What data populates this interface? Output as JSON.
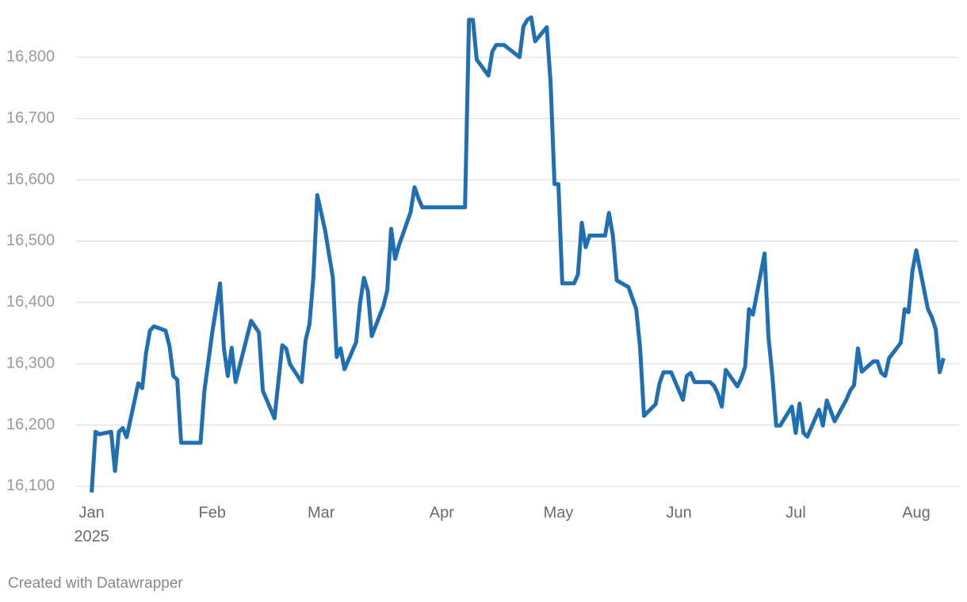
{
  "chart_data": {
    "type": "line",
    "x": [
      0,
      1,
      2,
      5,
      6,
      7,
      8,
      9,
      12,
      13,
      14,
      15,
      16,
      19,
      20,
      21,
      22,
      23,
      28,
      29,
      31,
      33,
      34,
      35,
      36,
      37,
      41,
      43,
      44,
      47,
      49,
      50,
      51,
      54,
      55,
      56,
      57,
      58,
      60,
      62,
      63,
      64,
      65,
      68,
      69,
      70,
      71,
      72,
      75,
      76,
      77,
      78,
      79,
      82,
      83,
      84,
      85,
      96,
      97,
      98,
      99,
      102,
      103,
      104,
      106,
      110,
      111,
      112,
      113,
      114,
      117,
      118,
      119,
      120,
      121,
      124,
      125,
      126,
      127,
      128,
      132,
      133,
      134,
      135,
      138,
      140,
      141,
      142,
      145,
      146,
      147,
      149,
      152,
      153,
      154,
      155,
      159,
      160,
      161,
      162,
      163,
      166,
      167,
      168,
      169,
      170,
      173,
      174,
      175,
      176,
      177,
      180,
      181,
      182,
      183,
      184,
      187,
      188,
      189,
      191,
      194,
      195,
      196,
      197,
      198,
      201,
      202,
      203,
      204,
      205,
      208,
      209,
      210,
      211,
      212,
      215,
      216,
      217,
      218,
      219
    ],
    "values": [
      16090,
      16189,
      16185,
      16189,
      16125,
      16189,
      16195,
      16180,
      16268,
      16260,
      16318,
      16354,
      16361,
      16354,
      16329,
      16280,
      16274,
      16171,
      16171,
      16256,
      16351,
      16431,
      16325,
      16280,
      16326,
      16270,
      16370,
      16351,
      16256,
      16211,
      16330,
      16325,
      16299,
      16270,
      16338,
      16364,
      16441,
      16575,
      16518,
      16441,
      16311,
      16325,
      16291,
      16335,
      16398,
      16440,
      16418,
      16345,
      16394,
      16420,
      16520,
      16471,
      16493,
      16547,
      16588,
      16570,
      16555,
      16555,
      16861,
      16861,
      16796,
      16770,
      16809,
      16820,
      16820,
      16800,
      16850,
      16861,
      16865,
      16826,
      16849,
      16757,
      16593,
      16593,
      16431,
      16431,
      16445,
      16530,
      16490,
      16509,
      16509,
      16546,
      16509,
      16436,
      16425,
      16389,
      16325,
      16215,
      16234,
      16268,
      16286,
      16286,
      16241,
      16280,
      16285,
      16270,
      16270,
      16264,
      16251,
      16230,
      16290,
      16263,
      16276,
      16295,
      16389,
      16380,
      16480,
      16344,
      16281,
      16199,
      16199,
      16230,
      16187,
      16235,
      16187,
      16181,
      16225,
      16199,
      16240,
      16206,
      16241,
      16256,
      16265,
      16325,
      16287,
      16304,
      16304,
      16285,
      16280,
      16309,
      16334,
      16389,
      16384,
      16451,
      16485,
      16389,
      16376,
      16356,
      16286,
      16309
    ],
    "color": "#1f6fb2",
    "xlim": [
      -4,
      223
    ],
    "xticks": [
      {
        "value": 0,
        "label": "Jan"
      },
      {
        "value": 31,
        "label": "Feb"
      },
      {
        "value": 59,
        "label": "Mar"
      },
      {
        "value": 90,
        "label": "Apr"
      },
      {
        "value": 120,
        "label": "May"
      },
      {
        "value": 151,
        "label": "Jun"
      },
      {
        "value": 181,
        "label": "Jul"
      },
      {
        "value": 212,
        "label": "Aug"
      }
    ],
    "x_year_label": "2025",
    "ylim": [
      16090,
      16870
    ],
    "yticks": [
      {
        "value": 16100,
        "label": "16,100"
      },
      {
        "value": 16200,
        "label": "16,200"
      },
      {
        "value": 16300,
        "label": "16,300"
      },
      {
        "value": 16400,
        "label": "16,400"
      },
      {
        "value": 16500,
        "label": "16,500"
      },
      {
        "value": 16600,
        "label": "16,600"
      },
      {
        "value": 16700,
        "label": "16,700"
      },
      {
        "value": 16800,
        "label": "16,800"
      }
    ],
    "grid": true,
    "footer": "Created with Datawrapper"
  }
}
